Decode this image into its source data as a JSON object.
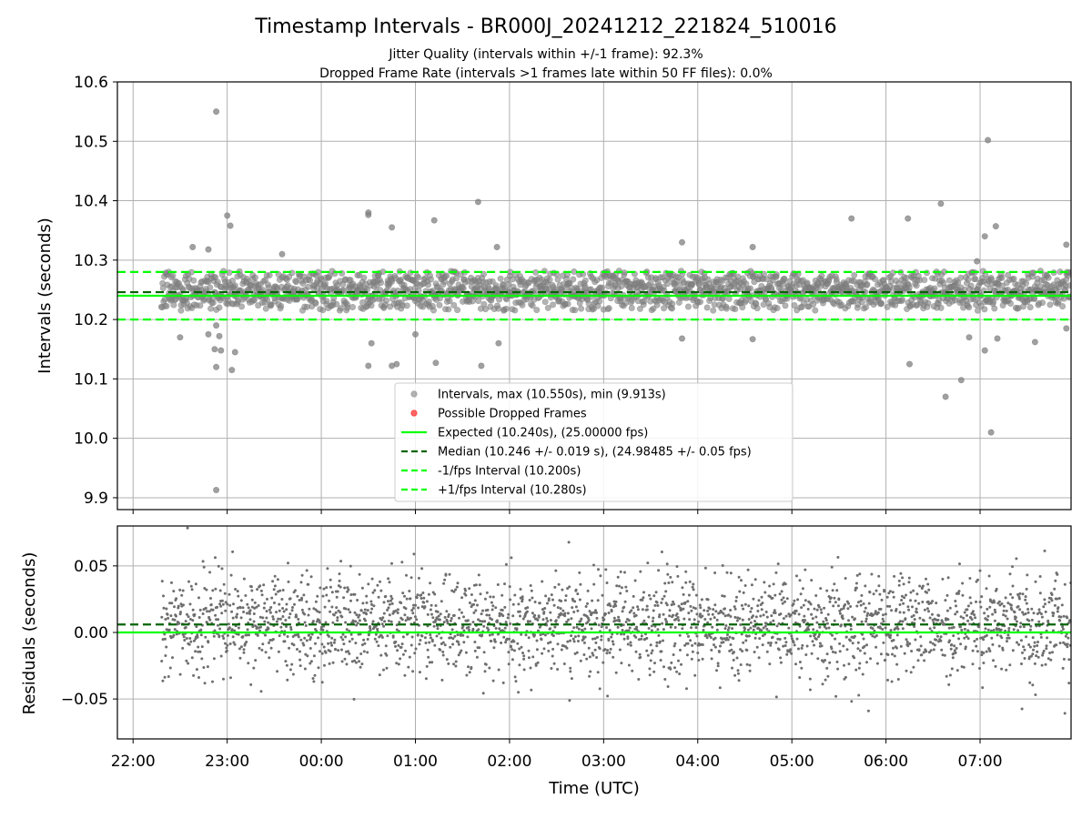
{
  "chart_data": [
    {
      "panel": "intervals",
      "type": "scatter",
      "title": "Timestamp Intervals - BR000J_20241212_221824_510016",
      "subtitle_lines": [
        "Jitter Quality (intervals within +/-1 frame): 92.3%",
        "Dropped Frame Rate (intervals >1 frames late within 50 FF files): 0.0%"
      ],
      "ylabel": "Intervals (seconds)",
      "xlabel": "",
      "xlim": [
        "21:50",
        "07:58"
      ],
      "ylim": [
        9.88,
        10.6
      ],
      "yticks": [
        9.9,
        10.0,
        10.1,
        10.2,
        10.3,
        10.4,
        10.5,
        10.6
      ],
      "ytick_labels": [
        "9.9",
        "10.0",
        "10.1",
        "10.2",
        "10.3",
        "10.4",
        "10.5",
        "10.6"
      ],
      "grid": true,
      "legend_position": "lower-center",
      "x_range_points": [
        "22:18",
        "07:58"
      ],
      "series": [
        {
          "name": "Intervals, max (10.550s), min (9.913s)",
          "kind": "points",
          "color": "#808080",
          "core_band": [
            10.215,
            10.282
          ],
          "outliers": [
            [
              "22:53",
              10.55
            ],
            [
              "22:53",
              9.913
            ],
            [
              "07:05",
              10.502
            ],
            [
              "06:35",
              10.395
            ],
            [
              "01:40",
              10.398
            ],
            [
              "00:30",
              10.38
            ],
            [
              "00:45",
              10.355
            ],
            [
              "23:00",
              10.375
            ],
            [
              "23:02",
              10.358
            ],
            [
              "00:30",
              10.376
            ],
            [
              "01:12",
              10.367
            ],
            [
              "05:38",
              10.37
            ],
            [
              "06:14",
              10.37
            ],
            [
              "07:10",
              10.357
            ],
            [
              "07:03",
              10.34
            ],
            [
              "03:50",
              10.33
            ],
            [
              "04:35",
              10.322
            ],
            [
              "07:55",
              10.326
            ],
            [
              "01:52",
              10.322
            ],
            [
              "22:38",
              10.322
            ],
            [
              "22:48",
              10.318
            ],
            [
              "23:35",
              10.31
            ],
            [
              "06:58",
              10.298
            ],
            [
              "22:53",
              10.12
            ],
            [
              "23:03",
              10.115
            ],
            [
              "00:30",
              10.122
            ],
            [
              "00:48",
              10.125
            ],
            [
              "00:45",
              10.122
            ],
            [
              "01:13",
              10.127
            ],
            [
              "01:42",
              10.122
            ],
            [
              "06:15",
              10.125
            ],
            [
              "06:38",
              10.07
            ],
            [
              "06:48",
              10.098
            ],
            [
              "07:07",
              10.01
            ],
            [
              "07:03",
              10.148
            ],
            [
              "07:11",
              10.168
            ],
            [
              "07:35",
              10.162
            ],
            [
              "22:52",
              10.15
            ],
            [
              "22:56",
              10.148
            ],
            [
              "22:48",
              10.175
            ],
            [
              "22:55",
              10.172
            ],
            [
              "22:53",
              10.19
            ],
            [
              "22:30",
              10.17
            ],
            [
              "23:05",
              10.145
            ],
            [
              "00:32",
              10.16
            ],
            [
              "01:00",
              10.175
            ],
            [
              "01:53",
              10.16
            ],
            [
              "03:50",
              10.168
            ],
            [
              "04:35",
              10.167
            ],
            [
              "06:53",
              10.17
            ],
            [
              "07:55",
              10.185
            ]
          ]
        },
        {
          "name": "Possible Dropped Frames",
          "kind": "points",
          "color": "#ff0000",
          "values": []
        },
        {
          "name": "Expected (10.240s), (25.00000 fps)",
          "kind": "hline",
          "y": 10.24,
          "style": "solid",
          "color": "#00ff00"
        },
        {
          "name": "Median (10.246 +/- 0.019 s), (24.98485 +/- 0.05 fps)",
          "kind": "hline",
          "y": 10.246,
          "style": "dashed",
          "color": "#006400"
        },
        {
          "name": "-1/fps Interval (10.200s)",
          "kind": "hline",
          "y": 10.2,
          "style": "dashed",
          "color": "#00ff00"
        },
        {
          "name": "+1/fps Interval (10.280s)",
          "kind": "hline",
          "y": 10.28,
          "style": "dashed",
          "color": "#00ff00"
        }
      ]
    },
    {
      "panel": "residuals",
      "type": "scatter",
      "ylabel": "Residuals (seconds)",
      "xlabel": "Time (UTC)",
      "xlim": [
        "21:50",
        "07:58"
      ],
      "ylim": [
        -0.08,
        0.08
      ],
      "yticks": [
        -0.05,
        0.0,
        0.05
      ],
      "ytick_labels": [
        "−0.05",
        "0.00",
        "0.05"
      ],
      "xticks": [
        "22:00",
        "23:00",
        "00:00",
        "01:00",
        "02:00",
        "03:00",
        "04:00",
        "05:00",
        "06:00",
        "07:00"
      ],
      "xtick_labels": [
        "22:00",
        "23:00",
        "00:00",
        "01:00",
        "02:00",
        "03:00",
        "04:00",
        "05:00",
        "06:00",
        "07:00"
      ],
      "grid": true,
      "series": [
        {
          "name": "residuals",
          "kind": "points",
          "color": "#6e6e6e",
          "spread": 0.019,
          "x_range": [
            "22:18",
            "07:58"
          ]
        },
        {
          "name": "expected",
          "kind": "hline",
          "y": 0.0,
          "style": "solid",
          "color": "#00ff00"
        },
        {
          "name": "median",
          "kind": "hline",
          "y": 0.006,
          "style": "dashed",
          "color": "#006400"
        }
      ]
    }
  ]
}
